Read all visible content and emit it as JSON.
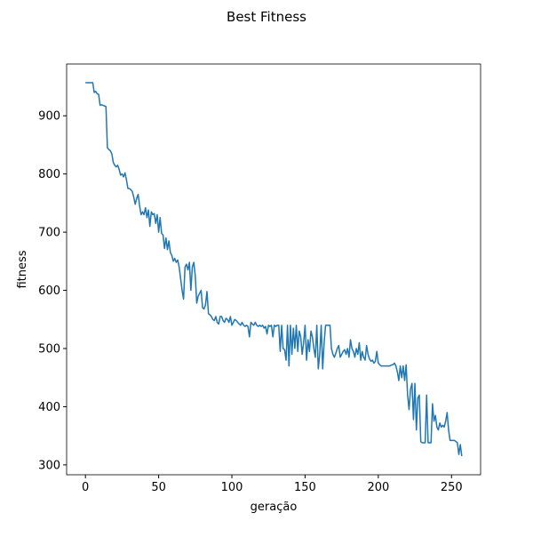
{
  "chart_data": {
    "type": "line",
    "title": "Best Fitness",
    "x_label": "geração",
    "y_label": "fitness",
    "x": [
      0,
      1,
      2,
      3,
      4,
      5,
      6,
      7,
      8,
      9,
      10,
      11,
      12,
      13,
      14,
      15,
      16,
      17,
      18,
      19,
      20,
      21,
      22,
      23,
      24,
      25,
      26,
      27,
      28,
      29,
      30,
      31,
      32,
      33,
      34,
      35,
      36,
      37,
      38,
      39,
      40,
      41,
      42,
      43,
      44,
      45,
      46,
      47,
      48,
      49,
      50,
      51,
      52,
      53,
      54,
      55,
      56,
      57,
      58,
      59,
      60,
      61,
      62,
      63,
      64,
      65,
      66,
      67,
      68,
      69,
      70,
      71,
      72,
      73,
      74,
      75,
      76,
      77,
      78,
      79,
      80,
      81,
      82,
      83,
      84,
      85,
      86,
      87,
      88,
      89,
      90,
      91,
      92,
      93,
      94,
      95,
      96,
      97,
      98,
      99,
      100,
      101,
      102,
      103,
      104,
      105,
      106,
      107,
      108,
      109,
      110,
      111,
      112,
      113,
      114,
      115,
      116,
      117,
      118,
      119,
      120,
      121,
      122,
      123,
      124,
      125,
      126,
      127,
      128,
      129,
      130,
      131,
      132,
      133,
      134,
      135,
      136,
      137,
      138,
      139,
      140,
      141,
      142,
      143,
      144,
      145,
      146,
      147,
      148,
      149,
      150,
      151,
      152,
      153,
      154,
      155,
      156,
      157,
      158,
      159,
      160,
      161,
      162,
      163,
      164,
      165,
      166,
      167,
      168,
      169,
      170,
      171,
      172,
      173,
      174,
      175,
      176,
      177,
      178,
      179,
      180,
      181,
      182,
      183,
      184,
      185,
      186,
      187,
      188,
      189,
      190,
      191,
      192,
      193,
      194,
      195,
      196,
      197,
      198,
      199,
      200,
      201,
      202,
      203,
      204,
      205,
      206,
      207,
      208,
      209,
      210,
      211,
      212,
      213,
      214,
      215,
      216,
      217,
      218,
      219,
      220,
      221,
      222,
      223,
      224,
      225,
      226,
      227,
      228,
      229,
      230,
      231,
      232,
      233,
      234,
      235,
      236,
      237,
      238,
      239,
      240,
      241,
      242,
      243,
      244,
      245,
      246,
      247,
      248,
      249,
      250,
      251,
      252,
      253,
      254,
      255,
      256,
      257
    ],
    "series": [
      {
        "color": "#1f77b4",
        "values": [
          957,
          957,
          957,
          957,
          957,
          957,
          940,
          942,
          938,
          937,
          918,
          919,
          918,
          917,
          916,
          845,
          842,
          840,
          835,
          820,
          815,
          812,
          815,
          808,
          798,
          800,
          795,
          802,
          790,
          775,
          775,
          773,
          770,
          760,
          748,
          758,
          765,
          745,
          730,
          735,
          730,
          742,
          725,
          738,
          710,
          735,
          730,
          732,
          715,
          730,
          700,
          725,
          698,
          695,
          672,
          690,
          670,
          685,
          665,
          660,
          650,
          655,
          648,
          652,
          640,
          620,
          600,
          585,
          640,
          645,
          635,
          648,
          600,
          640,
          648,
          625,
          578,
          590,
          595,
          600,
          570,
          568,
          575,
          598,
          560,
          558,
          555,
          550,
          548,
          555,
          545,
          542,
          555,
          555,
          548,
          545,
          552,
          550,
          545,
          555,
          540,
          545,
          550,
          548,
          545,
          542,
          540,
          545,
          540,
          538,
          540,
          538,
          520,
          545,
          542,
          540,
          545,
          540,
          538,
          540,
          538,
          540,
          535,
          538,
          525,
          540,
          538,
          540,
          520,
          540,
          538,
          540,
          540,
          495,
          540,
          500,
          498,
          480,
          540,
          470,
          540,
          490,
          535,
          500,
          540,
          495,
          530,
          520,
          490,
          510,
          540,
          480,
          515,
          495,
          530,
          520,
          500,
          485,
          540,
          465,
          490,
          540,
          465,
          510,
          540,
          540,
          540,
          540,
          500,
          490,
          485,
          492,
          500,
          505,
          485,
          490,
          495,
          498,
          490,
          500,
          485,
          515,
          500,
          495,
          485,
          500,
          490,
          510,
          480,
          495,
          485,
          480,
          505,
          490,
          482,
          478,
          480,
          475,
          478,
          495,
          475,
          472,
          470,
          470,
          470,
          470,
          470,
          470,
          470,
          472,
          472,
          475,
          470,
          460,
          445,
          470,
          450,
          470,
          445,
          472,
          420,
          395,
          430,
          440,
          378,
          440,
          360,
          415,
          420,
          340,
          338,
          338,
          338,
          420,
          338,
          338,
          338,
          405,
          375,
          385,
          365,
          360,
          372,
          365,
          368,
          365,
          375,
          390,
          360,
          342,
          342,
          342,
          342,
          340,
          338,
          318,
          335,
          315
        ]
      }
    ],
    "xlim": [
      -12.85,
      269.85
    ],
    "xticks": [
      0,
      50,
      100,
      150,
      200,
      250
    ],
    "ylim": [
      283,
      989
    ],
    "yticks": [
      300,
      400,
      500,
      600,
      700,
      800,
      900
    ]
  }
}
